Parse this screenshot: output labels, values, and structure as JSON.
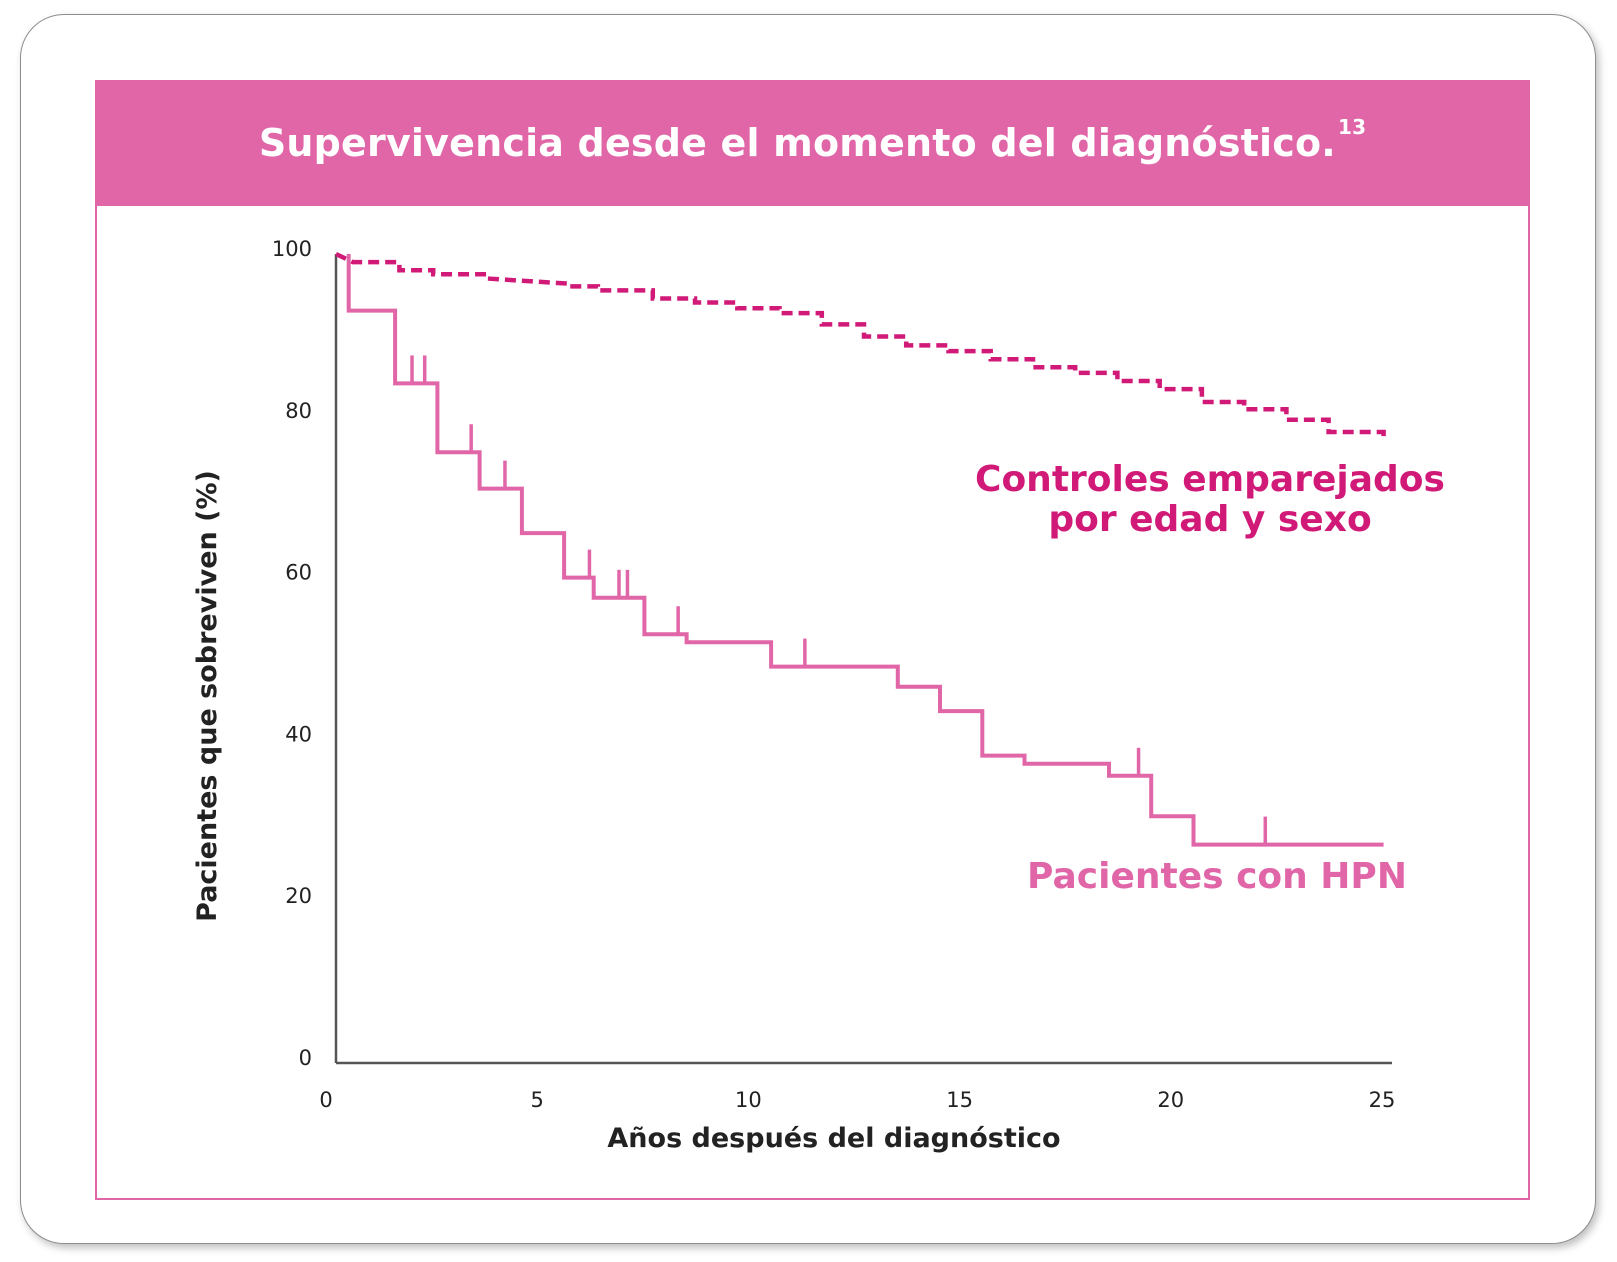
{
  "header": {
    "title": "Supervivencia desde el momento del diagnóstico.",
    "superscript": "13"
  },
  "colors": {
    "banner": "#e066a8",
    "hpn": "#e066a8",
    "controls": "#d11a78",
    "axis": "#555555"
  },
  "chart_data": {
    "type": "line",
    "title": "Supervivencia desde el momento del diagnóstico.",
    "xlabel": "Años después del diagnóstico",
    "ylabel": "Pacientes que sobreviven (%)",
    "xlim": [
      0,
      25
    ],
    "ylim": [
      0,
      100
    ],
    "xticks": [
      "0",
      "5",
      "10",
      "15",
      "20",
      "25"
    ],
    "yticks": [
      "0",
      "20",
      "40",
      "60",
      "80",
      "100"
    ],
    "grid": false,
    "series": [
      {
        "name": "Controles emparejados por edad y sexo",
        "style": "dashed-step",
        "label_lines": [
          "Controles emparejados",
          "por edad y sexo"
        ],
        "points": [
          [
            0,
            100
          ],
          [
            0.4,
            99
          ],
          [
            1.5,
            99
          ],
          [
            1.5,
            98
          ],
          [
            2.3,
            98
          ],
          [
            2.3,
            97.5
          ],
          [
            3.5,
            97.5
          ],
          [
            3.5,
            97
          ],
          [
            5.6,
            96.3
          ],
          [
            5.6,
            96
          ],
          [
            6.2,
            96
          ],
          [
            6.2,
            95.5
          ],
          [
            7.5,
            95.5
          ],
          [
            7.5,
            94.5
          ],
          [
            8.5,
            94.5
          ],
          [
            8.5,
            94
          ],
          [
            9.5,
            94
          ],
          [
            9.5,
            93.3
          ],
          [
            10.5,
            93.3
          ],
          [
            10.5,
            92.7
          ],
          [
            11.5,
            92.7
          ],
          [
            11.5,
            91.3
          ],
          [
            12.5,
            91.3
          ],
          [
            12.5,
            89.8
          ],
          [
            13.5,
            89.8
          ],
          [
            13.5,
            88.7
          ],
          [
            14.5,
            88.7
          ],
          [
            14.5,
            88
          ],
          [
            15.5,
            88
          ],
          [
            15.5,
            87
          ],
          [
            16.5,
            87
          ],
          [
            16.5,
            86
          ],
          [
            17.5,
            86
          ],
          [
            17.5,
            85.3
          ],
          [
            18.5,
            85.3
          ],
          [
            18.5,
            84.3
          ],
          [
            19.5,
            84.3
          ],
          [
            19.5,
            83.3
          ],
          [
            20.5,
            83.3
          ],
          [
            20.5,
            81.7
          ],
          [
            21.5,
            81.7
          ],
          [
            21.5,
            80.8
          ],
          [
            22.5,
            80.8
          ],
          [
            22.5,
            79.5
          ],
          [
            23.5,
            79.5
          ],
          [
            23.5,
            78
          ],
          [
            24.8,
            78
          ],
          [
            24.8,
            77
          ]
        ],
        "censor_x": []
      },
      {
        "name": "Pacientes con HPN",
        "style": "solid-step",
        "label_lines": [
          "Pacientes con HPN"
        ],
        "points": [
          [
            0.3,
            100
          ],
          [
            0.3,
            93
          ],
          [
            1.4,
            93
          ],
          [
            1.4,
            84
          ],
          [
            2.4,
            84
          ],
          [
            2.4,
            75.5
          ],
          [
            3.4,
            75.5
          ],
          [
            3.4,
            71
          ],
          [
            4.4,
            71
          ],
          [
            4.4,
            65.5
          ],
          [
            5.4,
            65.5
          ],
          [
            5.4,
            60
          ],
          [
            6.1,
            60
          ],
          [
            6.1,
            57.5
          ],
          [
            7.3,
            57.5
          ],
          [
            7.3,
            53
          ],
          [
            8.3,
            53
          ],
          [
            8.3,
            52
          ],
          [
            10.3,
            52
          ],
          [
            10.3,
            49
          ],
          [
            13.3,
            49
          ],
          [
            13.3,
            46.5
          ],
          [
            14.3,
            46.5
          ],
          [
            14.3,
            43.5
          ],
          [
            15.3,
            43.5
          ],
          [
            15.3,
            38
          ],
          [
            16.3,
            38
          ],
          [
            16.3,
            37
          ],
          [
            18.3,
            37
          ],
          [
            18.3,
            35.5
          ],
          [
            19.3,
            35.5
          ],
          [
            19.3,
            30.5
          ],
          [
            20.3,
            30.5
          ],
          [
            20.3,
            27
          ],
          [
            24.8,
            27
          ]
        ],
        "censor_x": [
          1.8,
          2.1,
          3.2,
          4.0,
          6.0,
          6.7,
          6.9,
          8.1,
          11.1,
          19.0,
          22.0
        ]
      }
    ]
  }
}
